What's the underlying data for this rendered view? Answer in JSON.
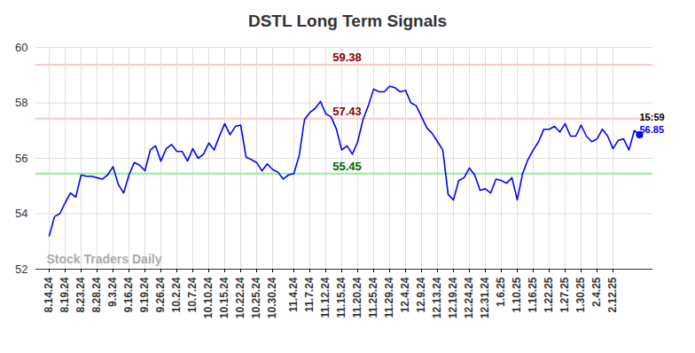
{
  "chart_data": {
    "type": "line",
    "title": "DSTL Long Term Signals",
    "categories": [
      "8.14.24",
      null,
      null,
      "8.19.24",
      null,
      null,
      "8.23.24",
      null,
      null,
      "8.28.24",
      null,
      null,
      "9.3.24",
      null,
      null,
      "9.16.24",
      null,
      null,
      "9.19.24",
      null,
      null,
      "9.26.24",
      null,
      null,
      "10.2.24",
      null,
      null,
      "10.7.24",
      null,
      null,
      "10.10.24",
      null,
      null,
      "10.15.24",
      null,
      null,
      "10.22.24",
      null,
      null,
      "10.25.24",
      null,
      null,
      "10.30.24",
      null,
      null,
      null,
      "11.4.24",
      null,
      null,
      "11.7.24",
      null,
      null,
      "11.12.24",
      null,
      null,
      "11.15.24",
      null,
      null,
      "11.20.24",
      null,
      null,
      "11.25.24",
      null,
      null,
      "11.29.24",
      null,
      null,
      "12.4.24",
      null,
      null,
      "12.9.24",
      null,
      null,
      "12.13.24",
      null,
      null,
      "12.19.24",
      null,
      null,
      "12.24.24",
      null,
      null,
      "12.31.24",
      null,
      null,
      "1.6.25",
      null,
      null,
      "1.10.25",
      null,
      null,
      "1.16.25",
      null,
      null,
      "1.22.25",
      null,
      null,
      "1.27.25",
      null,
      null,
      "1.30.25",
      null,
      null,
      "2.4.25",
      null,
      null,
      "2.12.25",
      null,
      null,
      null,
      null,
      null
    ],
    "values": [
      53.2,
      53.9,
      54.0,
      54.4,
      54.75,
      54.6,
      55.4,
      55.35,
      55.35,
      55.3,
      55.25,
      55.4,
      55.7,
      55.05,
      54.75,
      55.4,
      55.85,
      55.75,
      55.55,
      56.3,
      56.45,
      55.9,
      56.35,
      56.5,
      56.25,
      56.25,
      55.9,
      56.35,
      56.0,
      56.15,
      56.55,
      56.3,
      56.8,
      57.25,
      56.85,
      57.15,
      57.2,
      56.05,
      55.95,
      55.85,
      55.55,
      55.8,
      55.6,
      55.5,
      55.25,
      55.4,
      55.45,
      56.1,
      57.4,
      57.65,
      57.8,
      58.05,
      57.6,
      57.5,
      57.05,
      56.3,
      56.45,
      56.15,
      56.6,
      57.4,
      57.9,
      58.5,
      58.4,
      58.4,
      58.6,
      58.55,
      58.4,
      58.45,
      58.0,
      57.9,
      57.5,
      57.1,
      56.9,
      56.6,
      56.3,
      54.7,
      54.5,
      55.2,
      55.3,
      55.65,
      55.4,
      54.85,
      54.9,
      54.75,
      55.25,
      55.2,
      55.1,
      55.3,
      54.5,
      55.45,
      55.95,
      56.3,
      56.6,
      57.05,
      57.05,
      57.15,
      56.95,
      57.25,
      56.8,
      56.8,
      57.2,
      56.8,
      56.6,
      56.7,
      57.05,
      56.8,
      56.35,
      56.65,
      56.7,
      56.3,
      57.0,
      56.85
    ],
    "color": "#0000ff",
    "ylim": [
      52,
      60
    ],
    "yticks": [
      52,
      54,
      56,
      58,
      60
    ],
    "grid": true,
    "signal_lines": [
      {
        "value": 59.38,
        "color": "#ffc8c8",
        "label_color": "#8b0000"
      },
      {
        "value": 57.43,
        "color": "#ffc8c8",
        "label_color": "#8b0000"
      },
      {
        "value": 55.45,
        "color": "#90ee90",
        "label_color": "#006400"
      }
    ],
    "last_time_label": "15:59",
    "watermark": "Stock Traders Daily"
  }
}
